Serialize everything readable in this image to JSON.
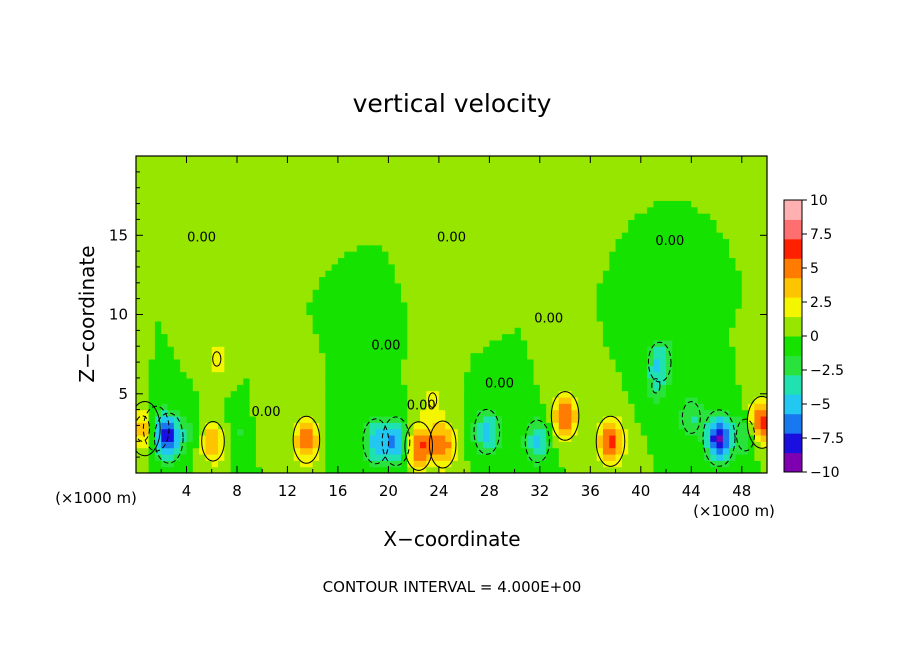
{
  "chart_data": {
    "type": "heatmap",
    "title": "vertical velocity",
    "xlabel": "X−coordinate",
    "ylabel": "Z−coordinate",
    "x_unit_left": "(×1000 m)",
    "x_unit_right": "(×1000 m)",
    "xlim": [
      0,
      50
    ],
    "ylim": [
      0,
      20
    ],
    "xticks": [
      4,
      8,
      12,
      16,
      20,
      24,
      28,
      32,
      36,
      40,
      44,
      48
    ],
    "yticks": [
      5,
      10,
      15
    ],
    "colorbar": {
      "min": -10,
      "max": 10,
      "ticks": [
        "10",
        "7.5",
        "5",
        "2.5",
        "0",
        "−2.5",
        "−5",
        "−7.5",
        "−10"
      ],
      "colors": [
        "#7e00b0",
        "#1b0fe0",
        "#1878f0",
        "#22c8f2",
        "#20e2b0",
        "#2ae23c",
        "#16e200",
        "#96e600",
        "#f4f600",
        "#ffc400",
        "#ff7c00",
        "#ff2000",
        "#ff6f6f",
        "#ffb0b0"
      ]
    },
    "background_value": 0,
    "features": [
      {
        "x": 0.5,
        "z": 2.8,
        "w": -2.5
      },
      {
        "x": 0.7,
        "z": 2.8,
        "w": 8
      },
      {
        "x": 1.6,
        "z": 2.8,
        "w": -5
      },
      {
        "x": 2.6,
        "z": 2.2,
        "w": -6.5
      },
      {
        "x": 4.0,
        "z": 2.6,
        "w": -1.5
      },
      {
        "x": 6.1,
        "z": 2.0,
        "w": 4
      },
      {
        "x": 6.4,
        "z": 7.2,
        "w": 2
      },
      {
        "x": 8.2,
        "z": 2.7,
        "w": -1.5
      },
      {
        "x": 10.5,
        "z": 3.4,
        "w": 1.5
      },
      {
        "x": 13.5,
        "z": 2.1,
        "w": 5.5
      },
      {
        "x": 15.8,
        "z": 2.0,
        "w": -1.2
      },
      {
        "x": 18.5,
        "z": 6.0,
        "w": -1.5
      },
      {
        "x": 19.0,
        "z": 2.0,
        "w": -5
      },
      {
        "x": 20.6,
        "z": 2.0,
        "w": -6
      },
      {
        "x": 22.4,
        "z": 1.7,
        "w": 6
      },
      {
        "x": 24.3,
        "z": 1.8,
        "w": 5.5
      },
      {
        "x": 23.5,
        "z": 4.6,
        "w": 2
      },
      {
        "x": 27.8,
        "z": 2.6,
        "w": -5
      },
      {
        "x": 31.8,
        "z": 2.0,
        "w": -4.5
      },
      {
        "x": 34.0,
        "z": 3.6,
        "w": 6
      },
      {
        "x": 37.6,
        "z": 2.0,
        "w": 6.5
      },
      {
        "x": 41.2,
        "z": 5.5,
        "w": -2
      },
      {
        "x": 41.5,
        "z": 7.0,
        "w": -4
      },
      {
        "x": 44.0,
        "z": 3.5,
        "w": -3
      },
      {
        "x": 46.2,
        "z": 2.2,
        "w": -9
      },
      {
        "x": 48.3,
        "z": 2.4,
        "w": -3
      },
      {
        "x": 49.6,
        "z": 3.2,
        "w": 7
      },
      {
        "x": 6.6,
        "z": 11.2,
        "w": 0.6
      },
      {
        "x": 25.5,
        "z": 12.0,
        "w": 0.8
      },
      {
        "x": 42.5,
        "z": 9.0,
        "w": -0.7
      }
    ],
    "contour_labels": [
      {
        "text": "0.00",
        "x": 5.2,
        "z": 14.6
      },
      {
        "text": "0.00",
        "x": 25.0,
        "z": 14.6
      },
      {
        "text": "0.00",
        "x": 42.3,
        "z": 14.4
      },
      {
        "text": "0.00",
        "x": 32.7,
        "z": 9.5
      },
      {
        "text": "0.00",
        "x": 19.8,
        "z": 7.8
      },
      {
        "text": "0.00",
        "x": 28.8,
        "z": 5.4
      },
      {
        "text": "0.00",
        "x": 10.3,
        "z": 3.6
      },
      {
        "text": "0.00",
        "x": 22.6,
        "z": 4.0
      }
    ]
  },
  "footer": {
    "contour_interval": "CONTOUR INTERVAL = 4.000E+00"
  }
}
